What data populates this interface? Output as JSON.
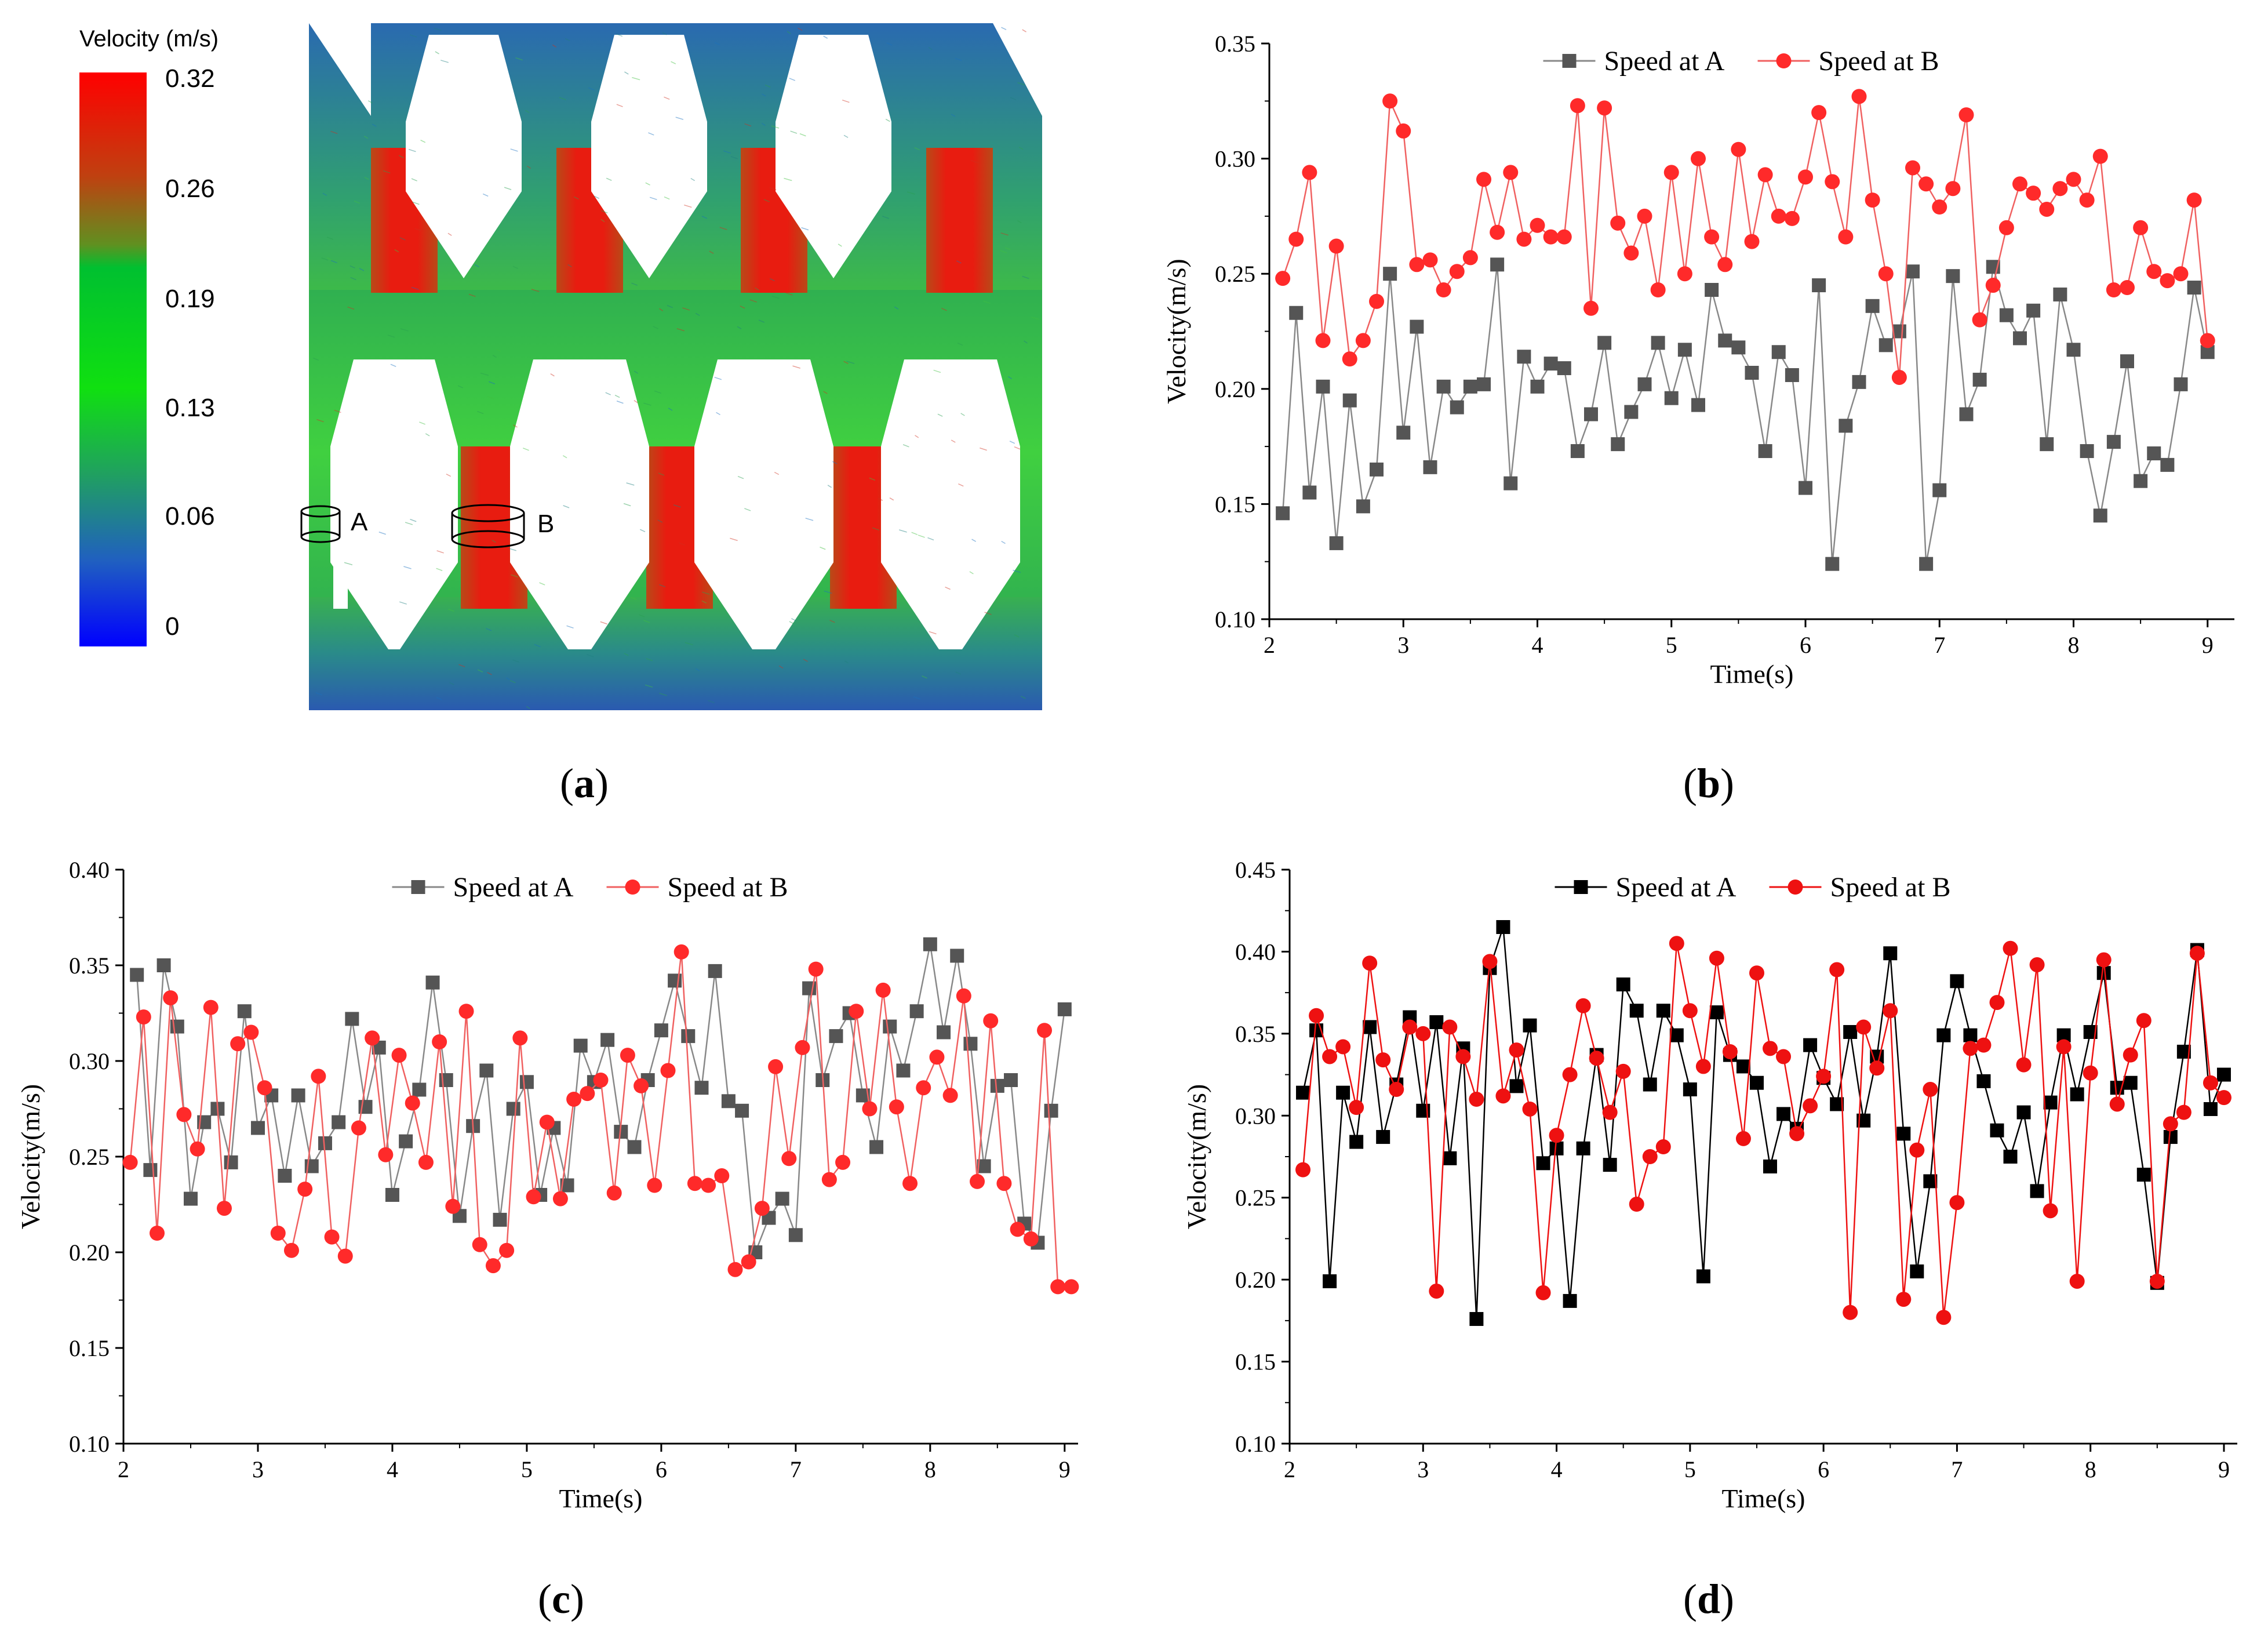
{
  "panel_a": {
    "label_paren_open": "(",
    "label": "a",
    "label_paren_close": ")",
    "colorbar_title": "Velocity (m/s)",
    "colorbar_ticks": [
      "0.32",
      "0.26",
      "0.19",
      "0.13",
      "0.06",
      "0"
    ],
    "colorbar_colors": [
      "#ff0000",
      "#b06a10",
      "#00c030",
      "#00e000",
      "#20a060",
      "#2060c0",
      "#0000ff"
    ],
    "probe_a_label": "A",
    "probe_b_label": "B",
    "field_colors": {
      "high": "#e81c10",
      "mid": "#20c040",
      "low": "#3060c0",
      "edge": "#1040a0"
    }
  },
  "colors": {
    "series_a_grey": "#555555",
    "series_a_black": "#000000",
    "series_b": "#ff2a2a",
    "line_b": "#f06060",
    "axis": "#000000"
  },
  "chart_data": [
    {
      "panel": "b",
      "type": "line",
      "title": "",
      "xlabel": "Time(s)",
      "ylabel": "Velocity(m/s)",
      "xlim": [
        2,
        9.2
      ],
      "ylim": [
        0.1,
        0.35
      ],
      "xticks": [
        2,
        3,
        4,
        5,
        6,
        7,
        8,
        9
      ],
      "yticks": [
        0.1,
        0.15,
        0.2,
        0.25,
        0.3,
        0.35
      ],
      "ytick_labels": [
        "0.10",
        "0.15",
        "0.20",
        "0.25",
        "0.30",
        "0.35"
      ],
      "legend_position": "top-center",
      "series": [
        {
          "name": "Speed at A",
          "color": "#555555",
          "line_color": "#888888",
          "marker": "square",
          "x": [
            2.1,
            2.2,
            2.3,
            2.4,
            2.5,
            2.6,
            2.7,
            2.8,
            2.9,
            3.0,
            3.1,
            3.2,
            3.3,
            3.4,
            3.5,
            3.6,
            3.7,
            3.8,
            3.9,
            4.0,
            4.1,
            4.2,
            4.3,
            4.4,
            4.5,
            4.6,
            4.7,
            4.8,
            4.9,
            5.0,
            5.1,
            5.2,
            5.3,
            5.4,
            5.5,
            5.6,
            5.7,
            5.8,
            5.9,
            6.0,
            6.1,
            6.2,
            6.3,
            6.4,
            6.5,
            6.6,
            6.7,
            6.8,
            6.9,
            7.0,
            7.1,
            7.2,
            7.3,
            7.4,
            7.5,
            7.6,
            7.7,
            7.8,
            7.9,
            8.0,
            8.1,
            8.2,
            8.3,
            8.4,
            8.5,
            8.6,
            8.7,
            8.8,
            8.9,
            9.0
          ],
          "y": [
            0.146,
            0.233,
            0.155,
            0.201,
            0.133,
            0.195,
            0.149,
            0.165,
            0.25,
            0.181,
            0.227,
            0.166,
            0.201,
            0.192,
            0.201,
            0.202,
            0.254,
            0.159,
            0.214,
            0.201,
            0.211,
            0.209,
            0.173,
            0.189,
            0.22,
            0.176,
            0.19,
            0.202,
            0.22,
            0.196,
            0.217,
            0.193,
            0.243,
            0.221,
            0.218,
            0.207,
            0.173,
            0.216,
            0.206,
            0.157,
            0.245,
            0.124,
            0.184,
            0.203,
            0.236,
            0.219,
            0.225,
            0.251,
            0.124,
            0.156,
            0.249,
            0.189,
            0.204,
            0.253,
            0.232,
            0.222,
            0.234,
            0.176,
            0.241,
            0.217,
            0.173,
            0.145,
            0.177,
            0.212,
            0.16,
            0.172,
            0.167,
            0.202,
            0.244,
            0.216
          ]
        },
        {
          "name": "Speed at B",
          "color": "#ff2a2a",
          "line_color": "#f06060",
          "marker": "circle",
          "x": [
            2.1,
            2.2,
            2.3,
            2.4,
            2.5,
            2.6,
            2.7,
            2.8,
            2.9,
            3.0,
            3.1,
            3.2,
            3.3,
            3.4,
            3.5,
            3.6,
            3.7,
            3.8,
            3.9,
            4.0,
            4.1,
            4.2,
            4.3,
            4.4,
            4.5,
            4.6,
            4.7,
            4.8,
            4.9,
            5.0,
            5.1,
            5.2,
            5.3,
            5.4,
            5.5,
            5.6,
            5.7,
            5.8,
            5.9,
            6.0,
            6.1,
            6.2,
            6.3,
            6.4,
            6.5,
            6.6,
            6.7,
            6.8,
            6.9,
            7.0,
            7.1,
            7.2,
            7.3,
            7.4,
            7.5,
            7.6,
            7.7,
            7.8,
            7.9,
            8.0,
            8.1,
            8.2,
            8.3,
            8.4,
            8.5,
            8.6,
            8.7,
            8.8,
            8.9,
            9.0
          ],
          "y": [
            0.248,
            0.265,
            0.294,
            0.221,
            0.262,
            0.213,
            0.221,
            0.238,
            0.325,
            0.312,
            0.254,
            0.256,
            0.243,
            0.251,
            0.257,
            0.291,
            0.268,
            0.294,
            0.265,
            0.271,
            0.266,
            0.266,
            0.323,
            0.235,
            0.322,
            0.272,
            0.259,
            0.275,
            0.243,
            0.294,
            0.25,
            0.3,
            0.266,
            0.254,
            0.304,
            0.264,
            0.293,
            0.275,
            0.274,
            0.292,
            0.32,
            0.29,
            0.266,
            0.327,
            0.282,
            0.25,
            0.205,
            0.296,
            0.289,
            0.279,
            0.287,
            0.319,
            0.23,
            0.245,
            0.27,
            0.289,
            0.285,
            0.278,
            0.287,
            0.291,
            0.282,
            0.301,
            0.243,
            0.244,
            0.27,
            0.251,
            0.247,
            0.25,
            0.282,
            0.221
          ]
        }
      ]
    },
    {
      "panel": "c",
      "type": "line",
      "title": "",
      "xlabel": "Time(s)",
      "ylabel": "Velocity(m/s)",
      "xlim": [
        2,
        9.1
      ],
      "ylim": [
        0.1,
        0.4
      ],
      "xticks": [
        2,
        3,
        4,
        5,
        6,
        7,
        8,
        9
      ],
      "yticks": [
        0.1,
        0.15,
        0.2,
        0.25,
        0.3,
        0.35,
        0.4
      ],
      "ytick_labels": [
        "0.10",
        "0.15",
        "0.20",
        "0.25",
        "0.30",
        "0.35",
        "0.40"
      ],
      "legend_position": "top-center",
      "series": [
        {
          "name": "Speed at A",
          "color": "#555555",
          "line_color": "#888888",
          "marker": "square",
          "x": [
            2.1,
            2.2,
            2.3,
            2.4,
            2.5,
            2.6,
            2.7,
            2.8,
            2.9,
            3.0,
            3.1,
            3.2,
            3.3,
            3.4,
            3.5,
            3.6,
            3.7,
            3.8,
            3.9,
            4.0,
            4.1,
            4.2,
            4.3,
            4.4,
            4.5,
            4.6,
            4.7,
            4.8,
            4.9,
            5.0,
            5.1,
            5.2,
            5.3,
            5.4,
            5.5,
            5.6,
            5.7,
            5.8,
            5.9,
            6.0,
            6.1,
            6.2,
            6.3,
            6.4,
            6.5,
            6.6,
            6.7,
            6.8,
            6.9,
            7.0,
            7.1,
            7.2,
            7.3,
            7.4,
            7.5,
            7.6,
            7.7,
            7.8,
            7.9,
            8.0,
            8.1,
            8.2,
            8.3,
            8.4,
            8.5,
            8.6,
            8.7,
            8.8,
            8.9,
            9.0
          ],
          "y": [
            0.345,
            0.243,
            0.35,
            0.318,
            0.228,
            0.268,
            0.275,
            0.247,
            0.326,
            0.265,
            0.282,
            0.24,
            0.282,
            0.245,
            0.257,
            0.268,
            0.322,
            0.276,
            0.307,
            0.23,
            0.258,
            0.285,
            0.341,
            0.29,
            0.219,
            0.266,
            0.295,
            0.217,
            0.275,
            0.289,
            0.23,
            0.265,
            0.235,
            0.308,
            0.289,
            0.311,
            0.263,
            0.255,
            0.29,
            0.316,
            0.342,
            0.313,
            0.286,
            0.347,
            0.279,
            0.274,
            0.2,
            0.218,
            0.228,
            0.209,
            0.338,
            0.29,
            0.313,
            0.325,
            0.282,
            0.255,
            0.318,
            0.295,
            0.326,
            0.361,
            0.315,
            0.355,
            0.309,
            0.245,
            0.287,
            0.29,
            0.215,
            0.205,
            0.274,
            0.327
          ]
        },
        {
          "name": "Speed at B",
          "color": "#ff2a2a",
          "line_color": "#f06060",
          "marker": "circle",
          "x": [
            2.05,
            2.15,
            2.25,
            2.35,
            2.45,
            2.55,
            2.65,
            2.75,
            2.85,
            2.95,
            3.05,
            3.15,
            3.25,
            3.35,
            3.45,
            3.55,
            3.65,
            3.75,
            3.85,
            3.95,
            4.05,
            4.15,
            4.25,
            4.35,
            4.45,
            4.55,
            4.65,
            4.75,
            4.85,
            4.95,
            5.05,
            5.15,
            5.25,
            5.35,
            5.45,
            5.55,
            5.65,
            5.75,
            5.85,
            5.95,
            6.05,
            6.15,
            6.25,
            6.35,
            6.45,
            6.55,
            6.65,
            6.75,
            6.85,
            6.95,
            7.05,
            7.15,
            7.25,
            7.35,
            7.45,
            7.55,
            7.65,
            7.75,
            7.85,
            7.95,
            8.05,
            8.15,
            8.25,
            8.35,
            8.45,
            8.55,
            8.65,
            8.75,
            8.85,
            8.95,
            9.05
          ],
          "y": [
            0.247,
            0.323,
            0.21,
            0.333,
            0.272,
            0.254,
            0.328,
            0.223,
            0.309,
            0.315,
            0.286,
            0.21,
            0.201,
            0.233,
            0.292,
            0.208,
            0.198,
            0.265,
            0.312,
            0.251,
            0.303,
            0.278,
            0.247,
            0.31,
            0.224,
            0.326,
            0.204,
            0.193,
            0.201,
            0.312,
            0.229,
            0.268,
            0.228,
            0.28,
            0.283,
            0.29,
            0.231,
            0.303,
            0.287,
            0.235,
            0.295,
            0.357,
            0.236,
            0.235,
            0.24,
            0.191,
            0.195,
            0.223,
            0.297,
            0.249,
            0.307,
            0.348,
            0.238,
            0.247,
            0.326,
            0.275,
            0.337,
            0.276,
            0.236,
            0.286,
            0.302,
            0.282,
            0.334,
            0.237,
            0.321,
            0.236,
            0.212,
            0.207,
            0.316,
            0.182,
            0.182
          ]
        }
      ]
    },
    {
      "panel": "d",
      "type": "line",
      "title": "",
      "xlabel": "Time(s)",
      "ylabel": "Velocity(m/s)",
      "xlim": [
        2,
        9.1
      ],
      "ylim": [
        0.1,
        0.45
      ],
      "xticks": [
        2,
        3,
        4,
        5,
        6,
        7,
        8,
        9
      ],
      "yticks": [
        0.1,
        0.15,
        0.2,
        0.25,
        0.3,
        0.35,
        0.4,
        0.45
      ],
      "ytick_labels": [
        "0.10",
        "0.15",
        "0.20",
        "0.25",
        "0.30",
        "0.35",
        "0.40",
        "0.45"
      ],
      "legend_position": "top-center",
      "series": [
        {
          "name": "Speed at A",
          "color": "#000000",
          "line_color": "#000000",
          "marker": "square",
          "x": [
            2.1,
            2.2,
            2.3,
            2.4,
            2.5,
            2.6,
            2.7,
            2.8,
            2.9,
            3.0,
            3.1,
            3.2,
            3.3,
            3.4,
            3.5,
            3.6,
            3.7,
            3.8,
            3.9,
            4.0,
            4.1,
            4.2,
            4.3,
            4.4,
            4.5,
            4.6,
            4.7,
            4.8,
            4.9,
            5.0,
            5.1,
            5.2,
            5.3,
            5.4,
            5.5,
            5.6,
            5.7,
            5.8,
            5.9,
            6.0,
            6.1,
            6.2,
            6.3,
            6.4,
            6.5,
            6.6,
            6.7,
            6.8,
            6.9,
            7.0,
            7.1,
            7.2,
            7.3,
            7.4,
            7.5,
            7.6,
            7.7,
            7.8,
            7.9,
            8.0,
            8.1,
            8.2,
            8.3,
            8.4,
            8.5,
            8.6,
            8.7,
            8.8,
            8.9,
            9.0
          ],
          "y": [
            0.314,
            0.352,
            0.199,
            0.314,
            0.284,
            0.354,
            0.287,
            0.319,
            0.36,
            0.303,
            0.357,
            0.274,
            0.341,
            0.176,
            0.39,
            0.415,
            0.318,
            0.355,
            0.271,
            0.28,
            0.187,
            0.28,
            0.337,
            0.27,
            0.38,
            0.364,
            0.319,
            0.364,
            0.349,
            0.316,
            0.202,
            0.363,
            0.337,
            0.33,
            0.32,
            0.269,
            0.301,
            0.292,
            0.343,
            0.323,
            0.307,
            0.351,
            0.297,
            0.336,
            0.399,
            0.289,
            0.205,
            0.26,
            0.349,
            0.382,
            0.349,
            0.321,
            0.291,
            0.275,
            0.302,
            0.254,
            0.308,
            0.349,
            0.313,
            0.351,
            0.387,
            0.317,
            0.32,
            0.264,
            0.198,
            0.287,
            0.339,
            0.401,
            0.304,
            0.325
          ]
        },
        {
          "name": "Speed at B",
          "color": "#ee1111",
          "line_color": "#ee1111",
          "marker": "circle",
          "x": [
            2.1,
            2.2,
            2.3,
            2.4,
            2.5,
            2.6,
            2.7,
            2.8,
            2.9,
            3.0,
            3.1,
            3.2,
            3.3,
            3.4,
            3.5,
            3.6,
            3.7,
            3.8,
            3.9,
            4.0,
            4.1,
            4.2,
            4.3,
            4.4,
            4.5,
            4.6,
            4.7,
            4.8,
            4.9,
            5.0,
            5.1,
            5.2,
            5.3,
            5.4,
            5.5,
            5.6,
            5.7,
            5.8,
            5.9,
            6.0,
            6.1,
            6.2,
            6.3,
            6.4,
            6.5,
            6.6,
            6.7,
            6.8,
            6.9,
            7.0,
            7.1,
            7.2,
            7.3,
            7.4,
            7.5,
            7.6,
            7.7,
            7.8,
            7.9,
            8.0,
            8.1,
            8.2,
            8.3,
            8.4,
            8.5,
            8.6,
            8.7,
            8.8,
            8.9,
            9.0
          ],
          "y": [
            0.267,
            0.361,
            0.336,
            0.342,
            0.305,
            0.393,
            0.334,
            0.316,
            0.354,
            0.35,
            0.193,
            0.354,
            0.336,
            0.31,
            0.394,
            0.312,
            0.34,
            0.304,
            0.192,
            0.288,
            0.325,
            0.367,
            0.335,
            0.302,
            0.327,
            0.246,
            0.275,
            0.281,
            0.405,
            0.364,
            0.33,
            0.396,
            0.339,
            0.286,
            0.387,
            0.341,
            0.336,
            0.289,
            0.306,
            0.324,
            0.389,
            0.18,
            0.354,
            0.329,
            0.364,
            0.188,
            0.279,
            0.316,
            0.177,
            0.247,
            0.341,
            0.343,
            0.369,
            0.402,
            0.331,
            0.392,
            0.242,
            0.342,
            0.199,
            0.326,
            0.395,
            0.307,
            0.337,
            0.358,
            0.199,
            0.295,
            0.302,
            0.399,
            0.32,
            0.311
          ]
        }
      ]
    }
  ]
}
